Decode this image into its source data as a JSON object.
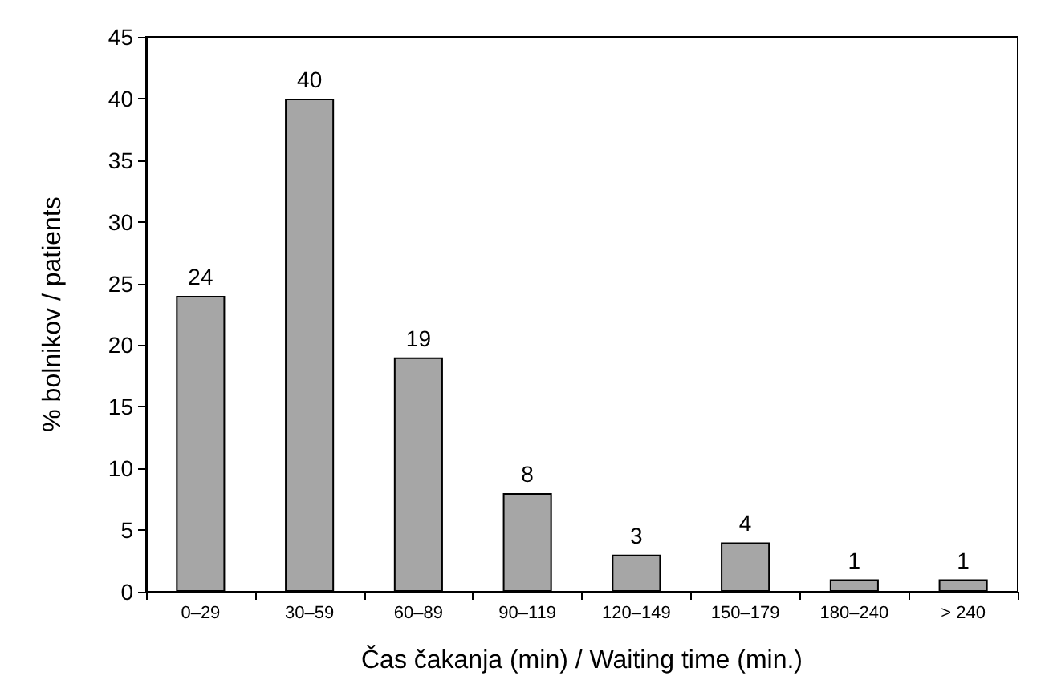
{
  "chart_data": {
    "type": "bar",
    "xlabel": "Čas čakanja (min) / Waiting time (min.)",
    "ylabel": "% bolnikov / patients",
    "categories": [
      "0–29",
      "30–59",
      "60–89",
      "90–119",
      "120–149",
      "150–179",
      "180–240",
      "> 240"
    ],
    "values": [
      24,
      40,
      19,
      8,
      3,
      4,
      1,
      1
    ],
    "color": "#a6a6a6",
    "ylim": [
      0,
      45
    ],
    "yticks": [
      0,
      5,
      10,
      15,
      20,
      25,
      30,
      35,
      40,
      45
    ],
    "grid": false,
    "data_labels": true
  }
}
